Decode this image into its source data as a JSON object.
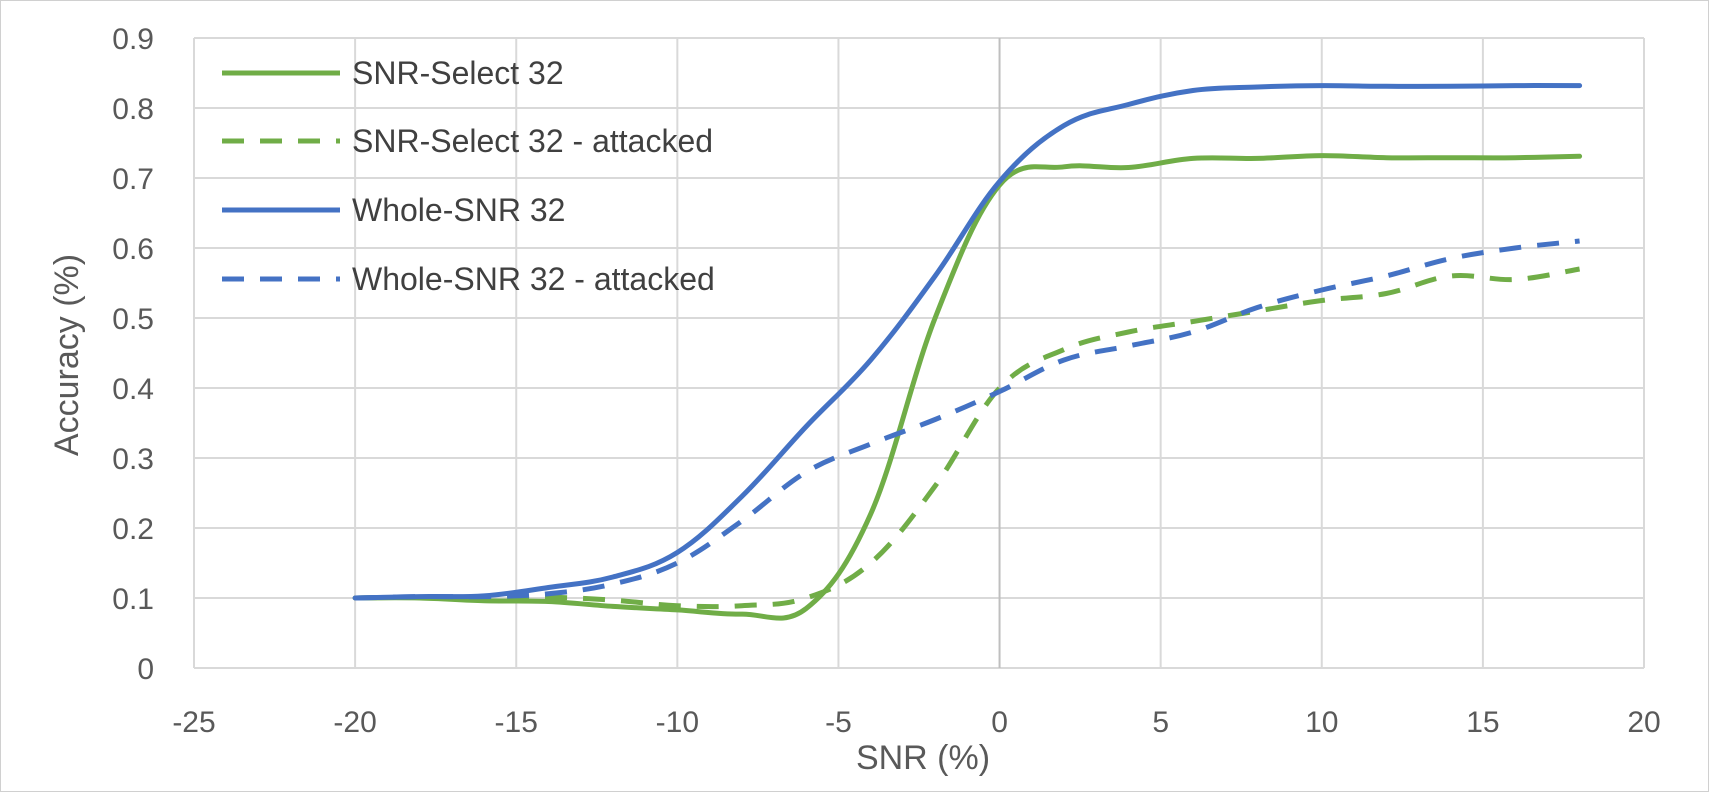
{
  "chart_data": {
    "type": "line",
    "title": "",
    "xlabel": "SNR (%)",
    "ylabel": "Accuracy (%)",
    "xlim": [
      -25,
      20
    ],
    "ylim": [
      0,
      0.9
    ],
    "xticks": [
      -25,
      -20,
      -15,
      -10,
      -5,
      0,
      5,
      10,
      15,
      20
    ],
    "yticks": [
      0,
      0.1,
      0.2,
      0.3,
      0.4,
      0.5,
      0.6,
      0.7,
      0.8,
      0.9
    ],
    "xtick_labels": [
      "-25",
      "-20",
      "-15",
      "-10",
      "-5",
      "0",
      "5",
      "10",
      "15",
      "20"
    ],
    "ytick_labels": [
      "0",
      "0.1",
      "0.2",
      "0.3",
      "0.4",
      "0.5",
      "0.6",
      "0.7",
      "0.8",
      "0.9"
    ],
    "grid": true,
    "legend_position": "top-left",
    "x": [
      -20,
      -18,
      -16,
      -14,
      -12,
      -10,
      -8,
      -6,
      -4,
      -2,
      0,
      2,
      4,
      6,
      8,
      10,
      12,
      14,
      16,
      18
    ],
    "series": [
      {
        "name": "SNR-Select 32",
        "color": "#70ad47",
        "dash": "solid",
        "values": [
          0.1,
          0.1,
          0.096,
          0.095,
          0.088,
          0.083,
          0.077,
          0.085,
          0.22,
          0.5,
          0.69,
          0.716,
          0.715,
          0.728,
          0.728,
          0.732,
          0.729,
          0.729,
          0.729,
          0.731
        ]
      },
      {
        "name": "SNR-Select 32 - attacked",
        "color": "#70ad47",
        "dash": "dashed",
        "values": [
          0.1,
          0.101,
          0.099,
          0.101,
          0.097,
          0.089,
          0.089,
          0.1,
          0.15,
          0.26,
          0.4,
          0.455,
          0.48,
          0.495,
          0.51,
          0.525,
          0.535,
          0.56,
          0.555,
          0.57
        ]
      },
      {
        "name": "Whole-SNR 32",
        "color": "#4472c4",
        "dash": "solid",
        "values": [
          0.1,
          0.102,
          0.103,
          0.115,
          0.13,
          0.165,
          0.245,
          0.345,
          0.44,
          0.56,
          0.695,
          0.775,
          0.805,
          0.825,
          0.83,
          0.832,
          0.831,
          0.831,
          0.832,
          0.832
        ]
      },
      {
        "name": "Whole-SNR 32 - attacked",
        "color": "#4472c4",
        "dash": "dashed",
        "values": [
          0.1,
          0.102,
          0.102,
          0.106,
          0.12,
          0.15,
          0.21,
          0.28,
          0.32,
          0.355,
          0.395,
          0.44,
          0.46,
          0.48,
          0.515,
          0.54,
          0.56,
          0.585,
          0.6,
          0.61
        ]
      }
    ]
  }
}
